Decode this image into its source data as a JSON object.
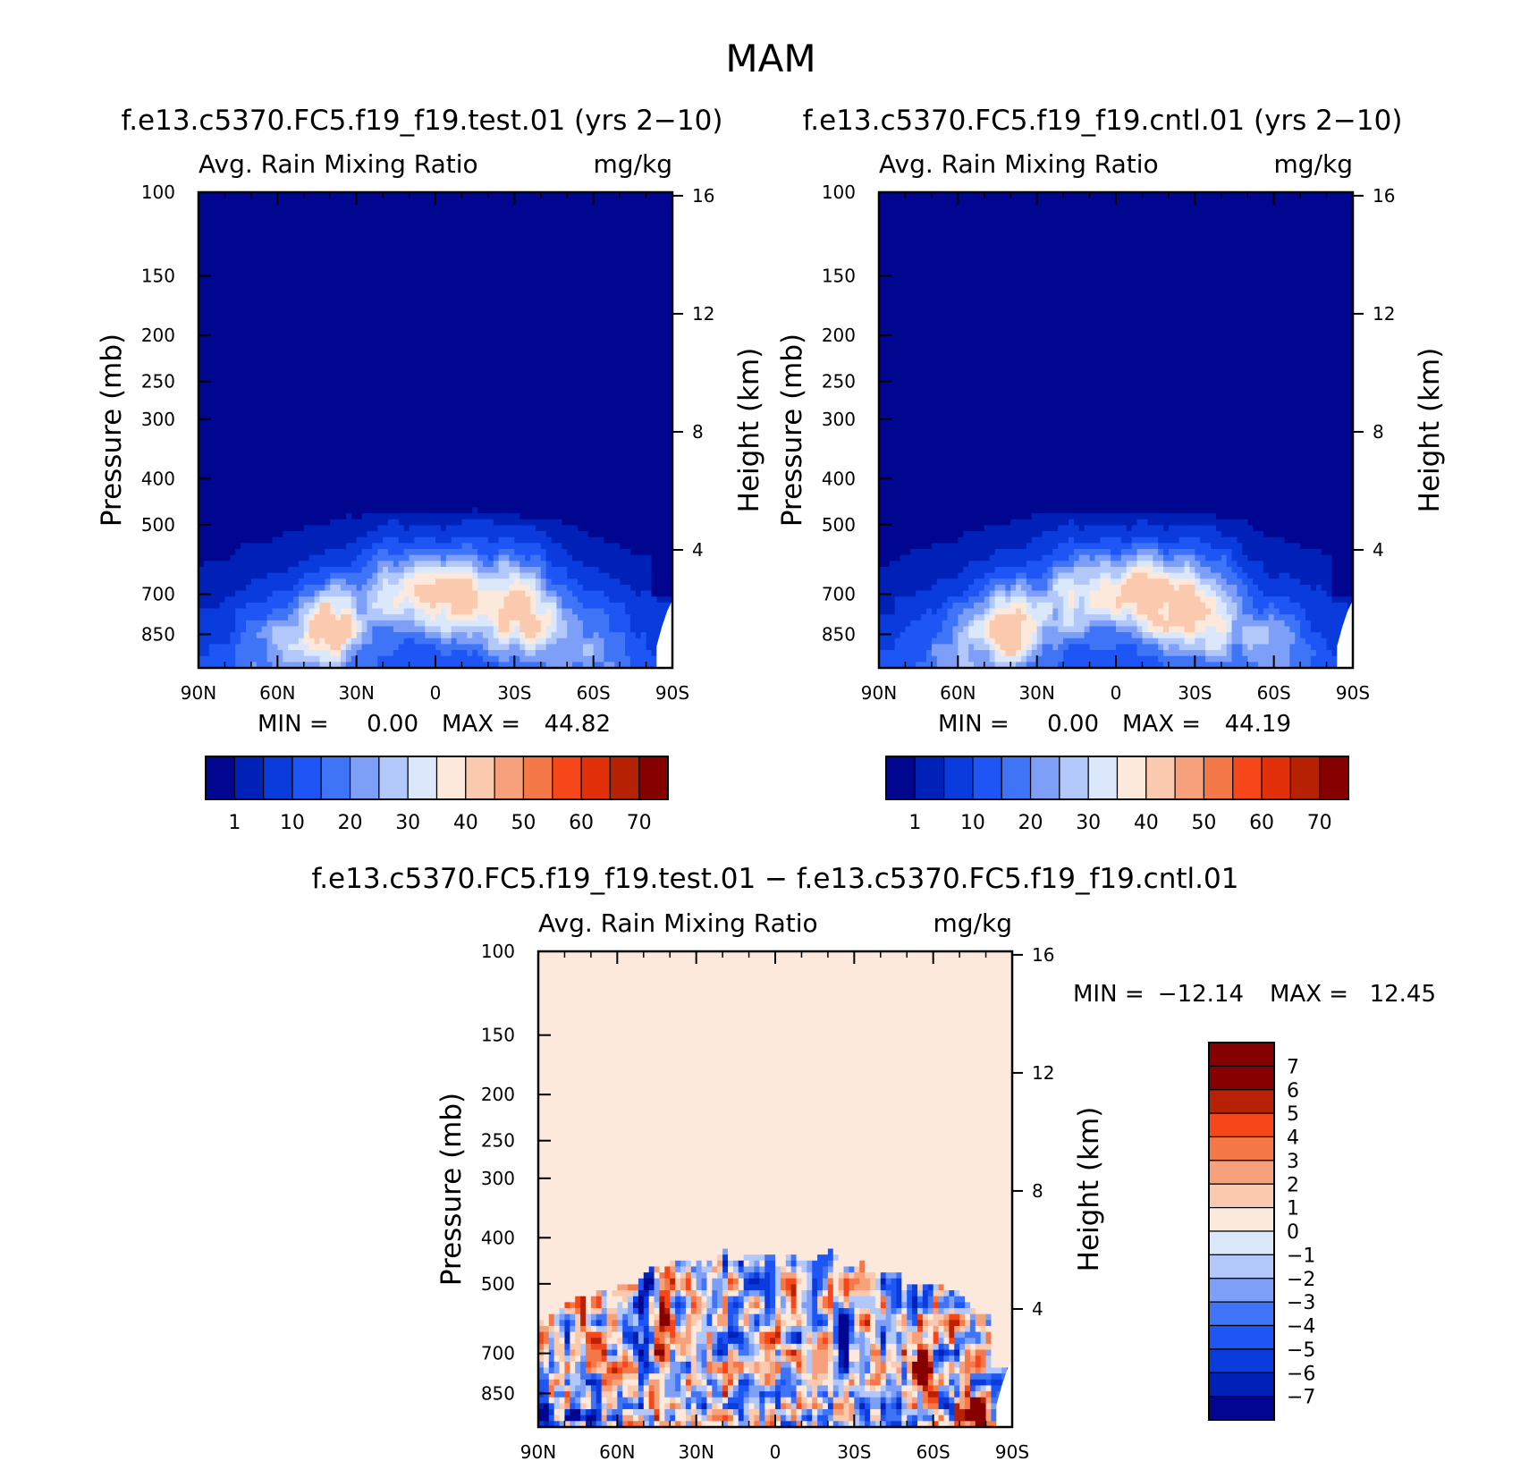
{
  "figure_title": "MAM",
  "colors": {
    "seq_palette": [
      "#00068f",
      "#0021b8",
      "#0a3bdc",
      "#1e55f5",
      "#3f74f7",
      "#7d9ff7",
      "#b3c8fa",
      "#dbe8fb",
      "#fde9dc",
      "#fbc9ae",
      "#f6a07c",
      "#f57848",
      "#f5471a",
      "#e2300b",
      "#b72104",
      "#860000"
    ],
    "div_palette": [
      "#00068f",
      "#0021b8",
      "#0a3bdc",
      "#1e55f5",
      "#3f74f7",
      "#7d9ff7",
      "#b3c8fa",
      "#dbe8fb",
      "#fde9dc",
      "#fbc9ae",
      "#f6a07c",
      "#f57848",
      "#f5471a",
      "#b72104",
      "#860000"
    ]
  },
  "chart_data": [
    {
      "type": "contour",
      "id": "test",
      "title": "f.e13.c5370.FC5.f19_f19.test.01 (yrs 2−10)",
      "left_label": "Avg. Rain Mixing Ratio",
      "right_label": "mg/kg",
      "ylabel": "Pressure (mb)",
      "y2label": "Height (km)",
      "x_ticks": [
        "90N",
        "60N",
        "30N",
        "0",
        "30S",
        "60S",
        "90S"
      ],
      "y_ticks": [
        "100",
        "150",
        "200",
        "250",
        "300",
        "400",
        "500",
        "700",
        "850"
      ],
      "y2_ticks": [
        "16",
        "12",
        "8",
        "4"
      ],
      "min_label": "MIN =",
      "min_value": "0.00",
      "max_label": "MAX =",
      "max_value": "44.82",
      "colorbar_labels": [
        "1",
        "10",
        "20",
        "30",
        "40",
        "50",
        "60",
        "70"
      ],
      "xlim": [
        90,
        -90
      ],
      "ylim_mb": [
        100,
        1000
      ],
      "field_max": 44.82
    },
    {
      "type": "contour",
      "id": "cntl",
      "title": "f.e13.c5370.FC5.f19_f19.cntl.01 (yrs 2−10)",
      "left_label": "Avg. Rain Mixing Ratio",
      "right_label": "mg/kg",
      "ylabel": "Pressure (mb)",
      "y2label": "Height (km)",
      "x_ticks": [
        "90N",
        "60N",
        "30N",
        "0",
        "30S",
        "60S",
        "90S"
      ],
      "y_ticks": [
        "100",
        "150",
        "200",
        "250",
        "300",
        "400",
        "500",
        "700",
        "850"
      ],
      "y2_ticks": [
        "16",
        "12",
        "8",
        "4"
      ],
      "min_label": "MIN =",
      "min_value": "0.00",
      "max_label": "MAX =",
      "max_value": "44.19",
      "colorbar_labels": [
        "1",
        "10",
        "20",
        "30",
        "40",
        "50",
        "60",
        "70"
      ],
      "xlim": [
        90,
        -90
      ],
      "ylim_mb": [
        100,
        1000
      ],
      "field_max": 44.19
    },
    {
      "type": "contour",
      "id": "diff",
      "title": "f.e13.c5370.FC5.f19_f19.test.01 − f.e13.c5370.FC5.f19_f19.cntl.01",
      "left_label": "Avg. Rain Mixing Ratio",
      "right_label": "mg/kg",
      "ylabel": "Pressure (mb)",
      "y2label": "Height (km)",
      "x_ticks": [
        "90N",
        "60N",
        "30N",
        "0",
        "30S",
        "60S",
        "90S"
      ],
      "y_ticks": [
        "100",
        "150",
        "200",
        "250",
        "300",
        "400",
        "500",
        "700",
        "850"
      ],
      "y2_ticks": [
        "16",
        "12",
        "8",
        "4"
      ],
      "min_label": "MIN =",
      "min_value": "−12.14",
      "max_label": "MAX =",
      "max_value": "12.45",
      "colorbar_labels": [
        "7",
        "6",
        "5",
        "4",
        "3",
        "2",
        "1",
        "0",
        "−1",
        "−2",
        "−3",
        "−4",
        "−5",
        "−6",
        "−7"
      ],
      "xlim": [
        90,
        -90
      ],
      "ylim_mb": [
        100,
        1000
      ],
      "field_min": -12.14,
      "field_max": 12.45
    }
  ]
}
